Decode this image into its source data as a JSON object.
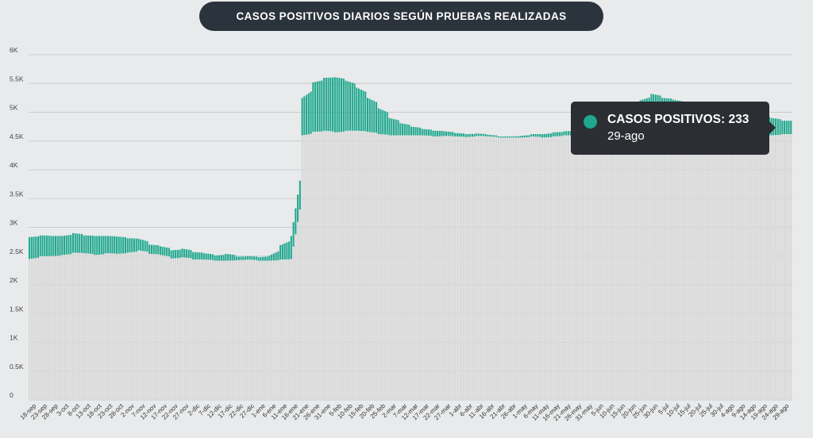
{
  "header": {
    "title": "CASOS POSITIVOS DIARIOS SEGÚN PRUEBAS REALIZADAS"
  },
  "tooltip": {
    "series_label": "CASOS POSITIVOS",
    "value": "233",
    "date": "29-ago",
    "color": "#1fa88e"
  },
  "chart_data": {
    "type": "bar",
    "y_ticks": [
      {
        "value": 0,
        "label": "0"
      },
      {
        "value": 500,
        "label": "0.5K"
      },
      {
        "value": 1000,
        "label": "1K"
      },
      {
        "value": 1500,
        "label": "1.5K"
      },
      {
        "value": 2000,
        "label": "2K"
      },
      {
        "value": 2500,
        "label": "2.5K"
      },
      {
        "value": 3000,
        "label": "3K"
      },
      {
        "value": 3500,
        "label": "3.5K"
      },
      {
        "value": 4000,
        "label": "4K"
      },
      {
        "value": 4500,
        "label": "4.5K"
      },
      {
        "value": 5000,
        "label": "5K"
      },
      {
        "value": 5500,
        "label": "5.5K"
      },
      {
        "value": 6000,
        "label": "6K"
      }
    ],
    "ylim": [
      0,
      6000
    ],
    "grid": true,
    "colors": {
      "tests": "#d9d9d9",
      "positives": "#1fa88e"
    },
    "categories": [
      "18-sep",
      "23-sep",
      "28-sep",
      "3-oct",
      "8-oct",
      "13-oct",
      "18-oct",
      "23-oct",
      "28-oct",
      "2-nov",
      "7-nov",
      "12-nov",
      "17-nov",
      "22-nov",
      "27-nov",
      "2-dic",
      "7-dic",
      "12-dic",
      "17-dic",
      "22-dic",
      "27-dic",
      "1-ene",
      "6-ene",
      "11-ene",
      "16-ene",
      "21-ene",
      "26-ene",
      "31-ene",
      "5-feb",
      "10-feb",
      "15-feb",
      "20-feb",
      "25-feb",
      "2-mar",
      "7-mar",
      "12-mar",
      "17-mar",
      "22-mar",
      "27-mar",
      "1-abr",
      "6-abr",
      "11-abr",
      "16-abr",
      "21-abr",
      "26-abr",
      "1-may",
      "6-may",
      "11-may",
      "16-may",
      "21-may",
      "26-may",
      "31-may",
      "5-jun",
      "10-jun",
      "15-jun",
      "20-jun",
      "25-jun",
      "30-jun",
      "5-jul",
      "10-jul",
      "15-jul",
      "20-jul",
      "25-jul",
      "30-jul",
      "4-ago",
      "9-ago",
      "14-ago",
      "19-ago",
      "24-ago",
      "29-ago"
    ],
    "series": [
      {
        "values": [
          2450,
          2500,
          2500,
          2520,
          2560,
          2550,
          2520,
          2550,
          2540,
          2560,
          2600,
          2540,
          2520,
          2460,
          2480,
          2440,
          2440,
          2420,
          2420,
          2430,
          2440,
          2420,
          2420,
          2440,
          2450,
          4600,
          4660,
          4680,
          4650,
          4680,
          4680,
          4660,
          4620,
          4600,
          4600,
          4600,
          4600,
          4580,
          4590,
          4580,
          4570,
          4590,
          4580,
          4560,
          4560,
          4560,
          4580,
          4560,
          4580,
          4600,
          4600,
          4620,
          4620,
          4610,
          4630,
          4700,
          4690,
          4740,
          4720,
          4680,
          4700,
          4680,
          4650,
          4690,
          4670,
          4620,
          4640,
          4600,
          4600,
          4620
        ]
      },
      {
        "name": "CASOS POSITIVOS",
        "values": [
          380,
          360,
          350,
          330,
          340,
          310,
          330,
          300,
          300,
          250,
          200,
          160,
          150,
          140,
          150,
          130,
          110,
          90,
          120,
          60,
          60,
          60,
          90,
          250,
          400,
          650,
          860,
          920,
          960,
          870,
          750,
          590,
          450,
          300,
          210,
          150,
          110,
          100,
          80,
          60,
          50,
          40,
          30,
          20,
          20,
          30,
          40,
          60,
          70,
          70,
          80,
          110,
          170,
          240,
          310,
          450,
          520,
          580,
          530,
          540,
          450,
          420,
          420,
          320,
          300,
          360,
          330,
          330,
          300,
          233
        ]
      }
    ]
  }
}
